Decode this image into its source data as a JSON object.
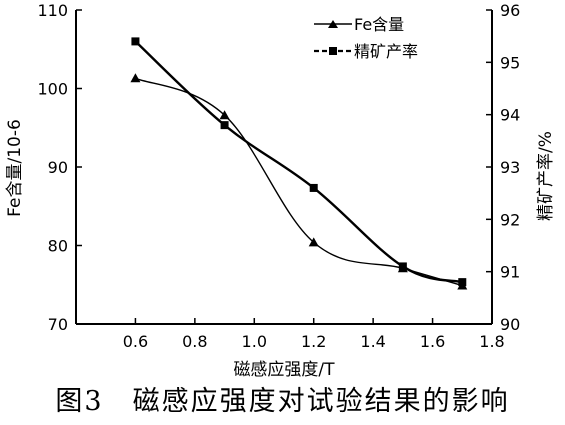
{
  "chart_data": {
    "type": "line",
    "xlabel": "磁感应强度/T",
    "x": [
      0.6,
      0.9,
      1.2,
      1.5,
      1.7
    ],
    "xlim": [
      0.4,
      1.8
    ],
    "xticks": [
      "0.6",
      "0.8",
      "1.0",
      "1.2",
      "1.4",
      "1.6",
      "1.8"
    ],
    "ylabel_left": "Fe含量/10-6",
    "ylim_left": [
      70,
      110
    ],
    "yticks_left": [
      "70",
      "80",
      "90",
      "100",
      "110"
    ],
    "ylabel_right": "精矿产率/%",
    "ylim_right": [
      90,
      96
    ],
    "yticks_right": [
      "90",
      "91",
      "92",
      "93",
      "94",
      "95",
      "96"
    ],
    "series": [
      {
        "name": "Fe含量",
        "axis": "left",
        "marker": "triangle",
        "values": [
          101.3,
          96.6,
          80.4,
          77.1,
          74.9
        ]
      },
      {
        "name": "精矿产率",
        "axis": "right",
        "marker": "square",
        "values": [
          95.4,
          93.8,
          92.6,
          91.1,
          90.8
        ]
      }
    ],
    "legend_position": "top-right",
    "grid": false
  },
  "caption": "图3　磁感应强度对试验结果的影响"
}
